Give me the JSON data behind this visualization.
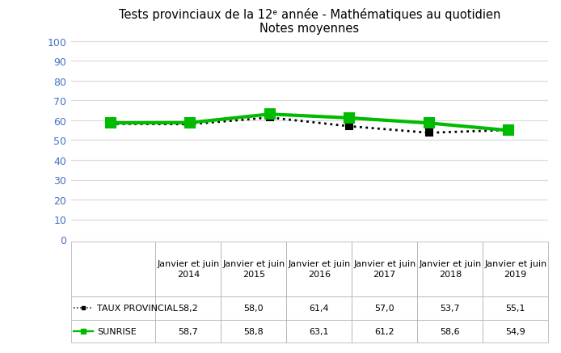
{
  "title_line1": "Tests provinciaux de la 12ᵉ année - Mathématiques au quotidien",
  "title_line2": "Notes moyennes",
  "x_labels": [
    "Janvier et juin\n2014",
    "Janvier et juin\n2015",
    "Janvier et juin\n2016",
    "Janvier et juin\n2017",
    "Janvier et juin\n2018",
    "Janvier et juin\n2019"
  ],
  "series": [
    {
      "name": "TAUX PROVINCIAL",
      "values": [
        58.2,
        58.0,
        61.4,
        57.0,
        53.7,
        55.1
      ],
      "color": "#000000",
      "linestyle": "dotted",
      "linewidth": 2.0,
      "marker": "s",
      "markersize": 6,
      "markerfacecolor": "#000000",
      "zorder": 2
    },
    {
      "name": "SUNRISE",
      "values": [
        58.7,
        58.8,
        63.1,
        61.2,
        58.6,
        54.9
      ],
      "color": "#00bb00",
      "linestyle": "solid",
      "linewidth": 3.0,
      "marker": "s",
      "markersize": 9,
      "markerfacecolor": "#00bb00",
      "zorder": 3
    }
  ],
  "table_rows": [
    [
      "58,2",
      "58,0",
      "61,4",
      "57,0",
      "53,7",
      "55,1"
    ],
    [
      "58,7",
      "58,8",
      "63,1",
      "61,2",
      "58,6",
      "54,9"
    ]
  ],
  "ylim": [
    0,
    100
  ],
  "yticks": [
    0,
    10,
    20,
    30,
    40,
    50,
    60,
    70,
    80,
    90,
    100
  ],
  "background_color": "#ffffff",
  "grid_color": "#d9d9d9",
  "title_fontsize": 10.5,
  "tick_fontsize": 9,
  "table_fontsize": 8,
  "ytick_color": "#4472c4"
}
